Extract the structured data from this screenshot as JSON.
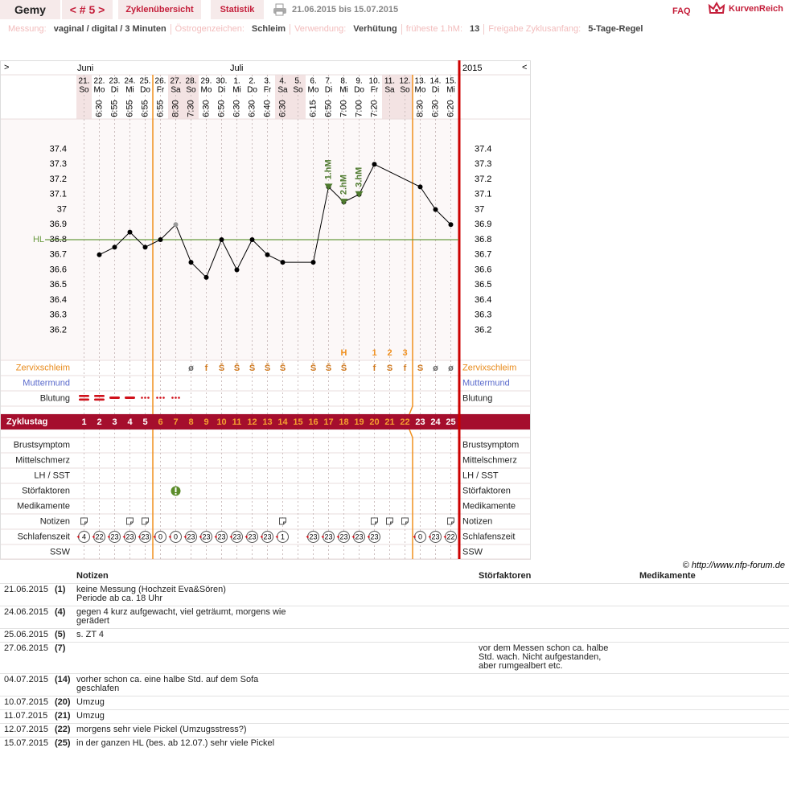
{
  "header": {
    "name": "Gemy",
    "cycle": "< # 5 >",
    "tabs": [
      "Zyklenübersicht",
      "Statistik"
    ],
    "date_range": "21.06.2015 bis 15.07.2015",
    "faq": "FAQ",
    "brand": "KurvenReich"
  },
  "settings": [
    {
      "label": "Messung:",
      "value": "vaginal / digital / 3 Minuten"
    },
    {
      "label": "Östrogenzeichen:",
      "value": "Schleim"
    },
    {
      "label": "Verwendung:",
      "value": "Verhütung"
    },
    {
      "label": "früheste 1.hM:",
      "value": "13"
    },
    {
      "label": "Freigabe Zyklusanfang:",
      "value": "5-Tage-Regel"
    }
  ],
  "chart_data": {
    "type": "line",
    "nav_left": ">",
    "nav_right": "<",
    "year": "2015",
    "month_labels": [
      "Juni",
      null,
      null,
      null,
      null,
      null,
      null,
      null,
      null,
      null,
      "Juli",
      null,
      null,
      null,
      null,
      null,
      null,
      null,
      null,
      null,
      null,
      null,
      null,
      null,
      null
    ],
    "categories": [
      "21.",
      "22.",
      "23.",
      "24.",
      "25.",
      "26.",
      "27.",
      "28.",
      "29.",
      "30.",
      "1.",
      "2.",
      "3.",
      "4.",
      "5.",
      "6.",
      "7.",
      "8.",
      "9.",
      "10.",
      "11.",
      "12.",
      "13.",
      "14.",
      "15."
    ],
    "weekdays": [
      "So",
      "Mo",
      "Di",
      "Mi",
      "Do",
      "Fr",
      "Sa",
      "So",
      "Mo",
      "Di",
      "Mi",
      "Do",
      "Fr",
      "Sa",
      "So",
      "Mo",
      "Di",
      "Mi",
      "Do",
      "Fr",
      "Sa",
      "So",
      "Mo",
      "Di",
      "Mi"
    ],
    "times": [
      null,
      "6:30",
      "6:55",
      "6:55",
      "6:55",
      "6:55",
      "8:30",
      "7:30",
      "6:30",
      "6:50",
      "6:30",
      "6:30",
      "6:40",
      "6:30",
      null,
      "6:15",
      "6:50",
      "7:00",
      "7:00",
      "7:20",
      null,
      null,
      "8:30",
      "6:30",
      "6:20"
    ],
    "xlim": [
      0.5,
      25.5
    ],
    "xticks": [
      1,
      2,
      3,
      4,
      5,
      6,
      7,
      8,
      9,
      10,
      11,
      12,
      13,
      14,
      15,
      16,
      17,
      18,
      19,
      20,
      21,
      22,
      23,
      24,
      25
    ],
    "ylim": [
      36.0,
      37.6
    ],
    "yticks": [
      36.2,
      36.3,
      36.4,
      36.5,
      36.6,
      36.7,
      36.8,
      36.9,
      37,
      37.1,
      37.2,
      37.3,
      37.4
    ],
    "grid": "x",
    "series": [
      {
        "color": "#000000",
        "x": [
          2,
          3,
          4,
          5,
          6,
          7,
          8,
          9,
          10,
          11,
          12,
          13,
          14,
          16,
          17,
          18,
          19,
          20,
          23,
          24,
          25
        ],
        "values": [
          36.7,
          36.75,
          36.85,
          36.75,
          36.8,
          36.9,
          36.65,
          36.55,
          36.8,
          36.6,
          36.8,
          36.7,
          36.65,
          36.65,
          37.15,
          37.05,
          37.1,
          37.3,
          37.15,
          37.0,
          36.9
        ],
        "point_colors": [
          "#000000",
          "#000000",
          "#000000",
          "#000000",
          "#000000",
          "#999999",
          "#000000",
          "#000000",
          "#000000",
          "#000000",
          "#000000",
          "#000000",
          "#000000",
          "#000000",
          "#000000",
          "#000000",
          "#000000",
          "#000000",
          "#000000",
          "#000000",
          "#000000"
        ]
      }
    ],
    "coverline": {
      "label": "HL",
      "value": 36.8,
      "color": "#6a9a40"
    },
    "annotations": [
      {
        "text": "1.hM",
        "x": 17
      },
      {
        "text": "2.hM",
        "x": 18
      },
      {
        "text": "3.hM",
        "x": 19
      }
    ],
    "peak_labels": [
      null,
      null,
      null,
      null,
      null,
      null,
      null,
      null,
      null,
      null,
      null,
      null,
      null,
      null,
      null,
      null,
      null,
      "H",
      null,
      "1",
      "2",
      "3",
      null,
      null,
      null
    ],
    "cervix": [
      null,
      null,
      null,
      null,
      null,
      null,
      null,
      "ø",
      "f",
      "S̄",
      "S̄",
      "S̄",
      "S̄",
      "S̄",
      null,
      "S̄",
      "S̄",
      "S̄",
      null,
      "f",
      "S",
      "f",
      "S",
      "ø",
      "ø"
    ],
    "row_labels": [
      "Zervixschleim",
      "Muttermund",
      "Blutung",
      "Zyklustag",
      "Brustsymptom",
      "Mittelschmerz",
      "LH / SST",
      "Störfaktoren",
      "Medikamente",
      "Notizen",
      "Schlafenszeit",
      "SSW"
    ],
    "sleep": [
      4,
      22,
      23,
      23,
      23,
      0,
      0,
      23,
      23,
      23,
      23,
      23,
      23,
      1,
      null,
      23,
      23,
      23,
      23,
      23,
      null,
      null,
      0,
      23,
      22
    ],
    "copyright": "© http://www.nfp-forum.de"
  },
  "notes_table": {
    "headers": [
      "Notizen",
      "Störfaktoren",
      "Medikamente"
    ],
    "rows": [
      {
        "date": "21.06.2015",
        "day": {
          "value": 1,
          "label": "(1)"
        },
        "notes": "keine Messung (Hochzeit Eva&Sören)\nPeriode ab ca. 18 Uhr"
      },
      {
        "date": "24.06.2015",
        "day": {
          "value": 4,
          "label": "(4)"
        },
        "notes": "gegen 4 kurz aufgewacht, viel geträumt, morgens wie gerädert"
      },
      {
        "date": "25.06.2015",
        "day": {
          "value": 5,
          "label": "(5)"
        },
        "notes": "s. ZT 4"
      },
      {
        "date": "27.06.2015",
        "day": {
          "value": 7,
          "label": "(7)"
        },
        "stoer": "vor dem Messen schon ca. halbe Std. wach. Nicht aufgestanden, aber rumgealbert etc."
      },
      {
        "date": "04.07.2015",
        "day": {
          "value": 14,
          "label": "(14)"
        },
        "notes": "vorher schon ca. eine halbe Std. auf dem Sofa geschlafen"
      },
      {
        "date": "10.07.2015",
        "day": {
          "value": 20,
          "label": "(20)"
        },
        "notes": "Umzug"
      },
      {
        "date": "11.07.2015",
        "day": {
          "value": 21,
          "label": "(21)"
        },
        "notes": "Umzug"
      },
      {
        "date": "12.07.2015",
        "day": {
          "value": 22,
          "label": "(22)"
        },
        "notes": "morgens sehr viele Pickel (Umzugsstress?)"
      },
      {
        "date": "15.07.2015",
        "day": {
          "value": 25,
          "label": "(25)"
        },
        "notes": "in der ganzen HL (bes. ab 12.07.) sehr viele Pickel"
      }
    ]
  }
}
